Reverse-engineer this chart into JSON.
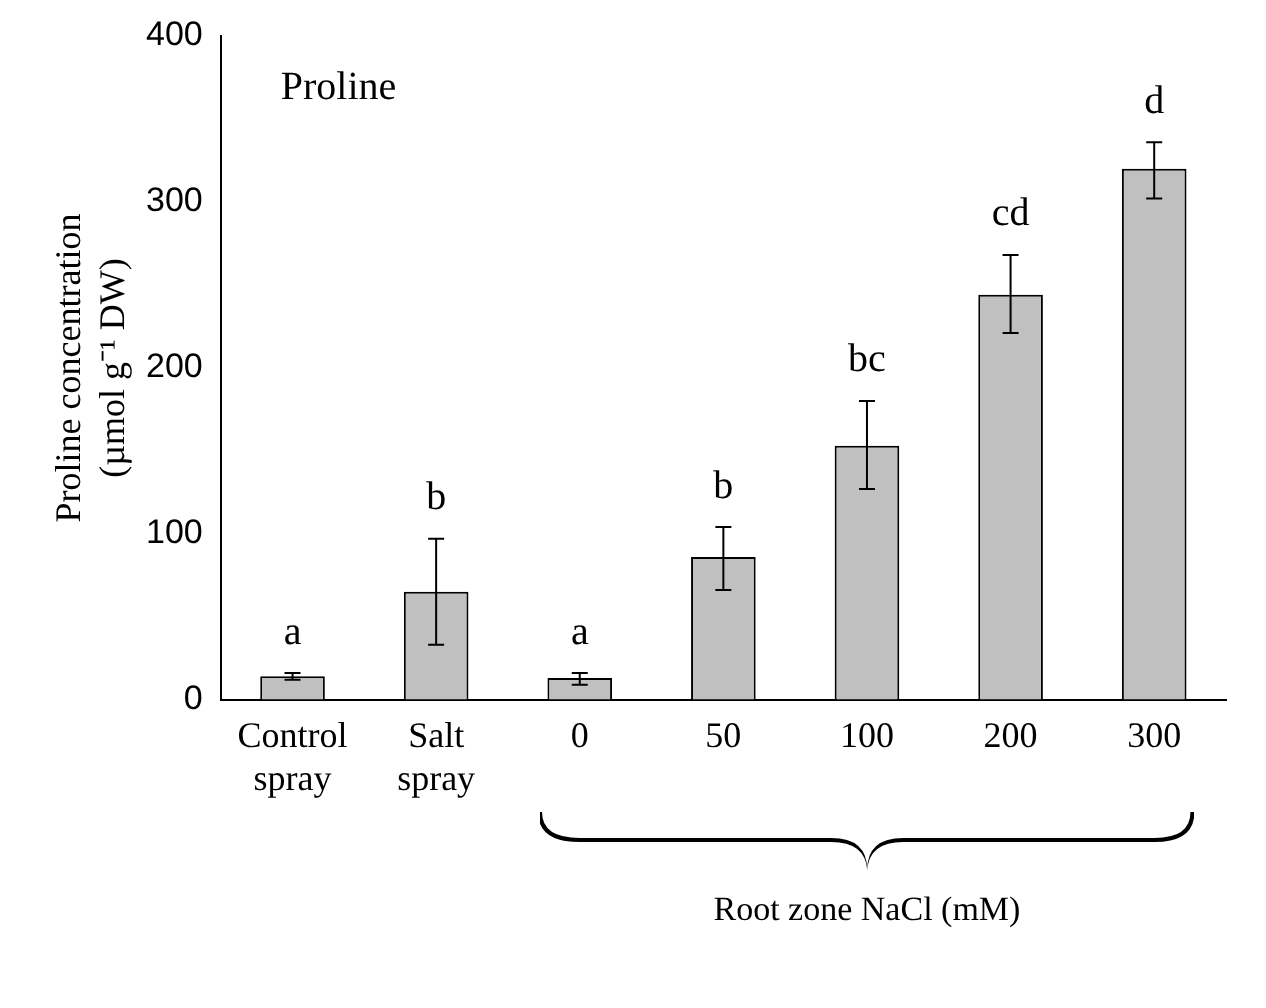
{
  "chart_data": {
    "type": "bar",
    "ylabel": "Proline concentration (µmol g⁻¹ DW)",
    "xlabel": "Root zone NaCl (mM)",
    "categories": [
      "Control spray",
      "Salt spray",
      "0",
      "50",
      "100",
      "200",
      "300"
    ],
    "values": [
      14,
      65,
      13,
      86,
      153,
      244,
      320
    ],
    "color": "#c0c0c0",
    "errors": [
      [
        12,
        16
      ],
      [
        33,
        97
      ],
      [
        9,
        16
      ],
      [
        66,
        104
      ],
      [
        127,
        180
      ],
      [
        221,
        268
      ],
      [
        302,
        336
      ]
    ],
    "ylim": [
      0,
      400
    ],
    "yticks": [
      0,
      100,
      200,
      300,
      400
    ],
    "grid": false,
    "legend": false,
    "value_labels": [
      "a",
      "b",
      "a",
      "b",
      "bc",
      "cd",
      "d"
    ],
    "annotations": [
      "Proline"
    ]
  }
}
